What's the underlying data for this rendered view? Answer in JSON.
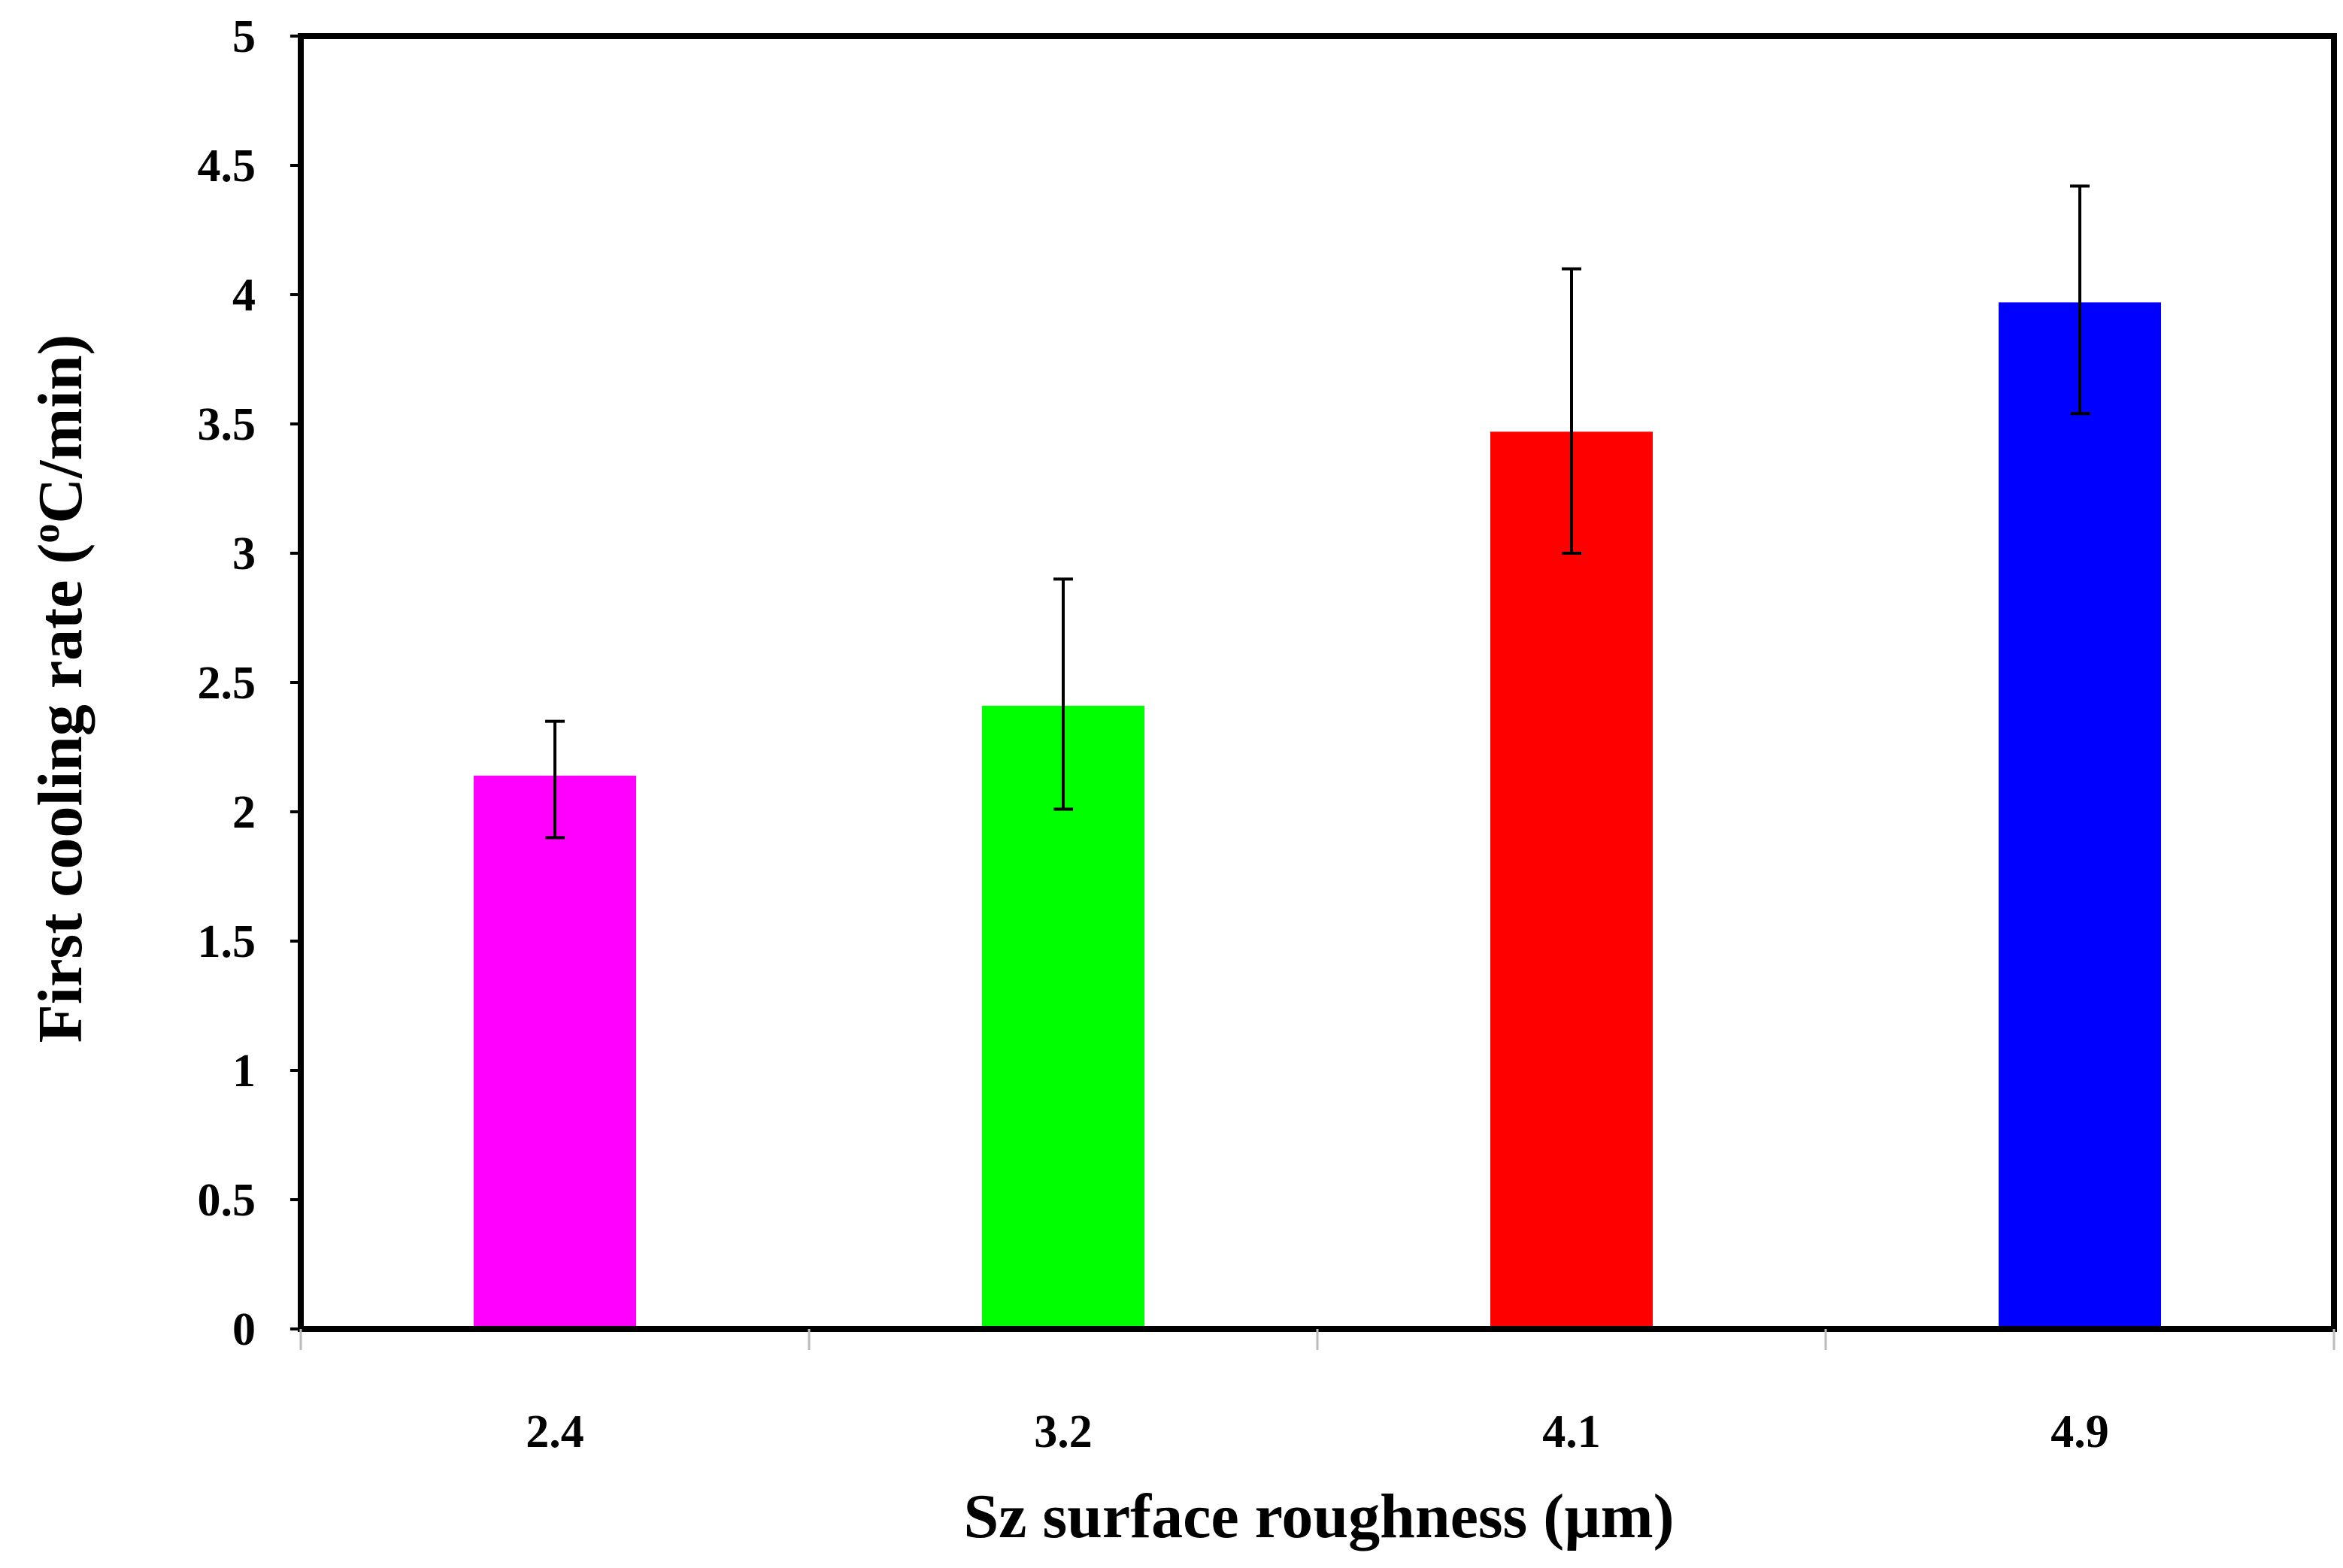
{
  "chart_data": {
    "type": "bar",
    "title": "",
    "xlabel": "Sz surface roughness (µm)",
    "ylabel_parts": {
      "pre": "First cooling rate (",
      "sup": "o",
      "post": "C/min)"
    },
    "categories": [
      "2.4",
      "3.2",
      "4.1",
      "4.9"
    ],
    "values": [
      2.14,
      2.41,
      3.47,
      3.97
    ],
    "error_low": [
      1.9,
      2.01,
      3.0,
      3.54
    ],
    "error_high": [
      2.35,
      2.9,
      4.1,
      4.42
    ],
    "colors": [
      "#ff00ff",
      "#00ff00",
      "#ff0000",
      "#0000ff"
    ],
    "ylim": [
      0,
      5
    ],
    "yticks": [
      0,
      0.5,
      1,
      1.5,
      2,
      2.5,
      3,
      3.5,
      4,
      4.5,
      5
    ],
    "ytick_labels": [
      "0",
      "0.5",
      "1",
      "1.5",
      "2",
      "2.5",
      "3",
      "3.5",
      "4",
      "4.5",
      "5"
    ],
    "grid": false,
    "legend": "none"
  }
}
